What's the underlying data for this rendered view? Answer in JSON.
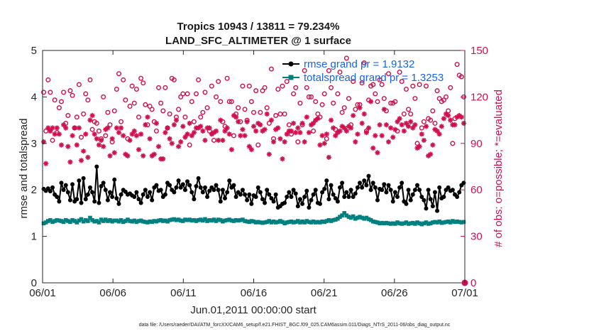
{
  "colors": {
    "rmse": "#000000",
    "spread": "#008080",
    "obs": "#d0104c",
    "legend_text": "#1764e8"
  },
  "chart_data": {
    "type": "line",
    "title": [
      "Tropics 10943 / 13811 = 79.234%",
      "LAND_SFC_ALTIMETER @ 1 surface"
    ],
    "xlabel": "Jun.01,2011 00:00:00 start",
    "ylabel": "rmse and totalspread",
    "y2label": "# of obs: o=possible; *=evaluated",
    "footnote": "data file: /Users/raeder/DAI/ATM_forcXX/CAM6_setup/f.e21.FHIST_BGC.f09_025.CAM6assim.011/Diags_NTrS_2011-06/obs_diag_output.nc",
    "xlim": [
      0,
      30
    ],
    "ylim": [
      0,
      5
    ],
    "y2lim": [
      0,
      150
    ],
    "xticks": [
      0,
      5,
      10,
      15,
      20,
      25,
      30
    ],
    "xtick_labels": [
      "06/01",
      "06/06",
      "06/11",
      "06/16",
      "06/21",
      "06/26",
      "07/01"
    ],
    "yticks": [
      0,
      1,
      2,
      3,
      4,
      5
    ],
    "ytick_labels": [
      "0",
      "1",
      "2",
      "3",
      "4",
      "5"
    ],
    "y2ticks": [
      0,
      30,
      60,
      90,
      120,
      150
    ],
    "y2tick_labels": [
      "0",
      "30",
      "60",
      "90",
      "120",
      "150"
    ],
    "legend": [
      "rmse grand pr = 1.9132",
      "totalspread grand pr = 1.3253"
    ],
    "legend_location": "top-right",
    "series": [
      {
        "name": "rmse",
        "marker": "dot",
        "values": [
          2.02,
          1.98,
          2.03,
          1.97,
          2.05,
          1.9,
          1.85,
          1.75,
          2.15,
          2.0,
          2.1,
          1.95,
          1.78,
          2.12,
          1.75,
          1.8,
          2.2,
          1.72,
          2.25,
          1.8,
          1.9,
          2.05,
          1.95,
          1.75,
          2.5,
          1.72,
          2.08,
          2.15,
          2.0,
          1.78,
          1.95,
          1.85,
          2.22,
          1.82,
          1.7,
          1.9,
          2.0,
          1.96,
          1.9,
          1.92,
          1.88,
          1.85,
          1.95,
          1.8,
          1.72,
          1.9,
          2.0,
          1.85,
          1.95,
          1.78,
          2.05,
          2.1,
          1.98,
          2.0,
          1.85,
          1.9,
          2.15,
          2.1,
          2.0,
          1.95,
          2.05,
          2.2,
          2.05,
          2.12,
          2.0,
          2.18,
          2.1,
          1.95,
          1.8,
          2.08,
          2.25,
          2.05,
          1.95,
          2.05,
          1.85,
          1.98,
          2.05,
          2.0,
          2.1,
          2.0,
          1.75,
          2.0,
          1.82,
          1.95,
          2.2,
          2.05,
          2.1,
          1.85,
          1.95,
          1.9,
          2.0,
          1.9,
          1.78,
          1.9,
          1.7,
          1.88,
          1.85,
          2.05,
          1.95,
          1.8,
          1.72,
          2.0,
          1.9,
          1.82,
          1.75,
          1.9,
          1.62,
          1.65,
          1.7,
          1.72,
          1.85,
          1.95,
          1.85,
          2.0,
          1.92,
          1.65,
          1.8,
          1.7,
          1.85,
          1.98,
          1.62,
          1.78,
          1.9,
          2.0,
          1.72,
          1.7,
          1.95,
          2.02,
          2.2,
          1.8,
          2.1,
          1.9,
          1.82,
          1.75,
          2.05,
          2.15,
          1.85,
          1.95,
          1.85,
          2.0,
          1.85,
          1.92,
          2.05,
          2.15,
          2.05,
          2.2,
          2.1,
          2.3,
          2.0,
          2.15,
          2.05,
          1.78,
          2.02,
          2.0,
          2.12,
          1.95,
          2.1,
          2.0,
          1.75,
          1.95,
          1.85,
          2.05,
          2.15,
          1.75,
          1.7,
          2.0,
          1.78,
          1.9,
          2.0,
          2.1,
          2.0,
          1.85,
          1.78,
          1.6,
          2.0,
          1.8,
          1.65,
          1.95,
          1.55,
          2.05,
          1.82,
          1.85,
          2.0,
          2.05,
          1.98,
          2.0,
          1.9,
          1.85,
          1.95,
          2.1,
          2.15
        ]
      },
      {
        "name": "totalspread",
        "marker": "square",
        "values": [
          1.28,
          1.3,
          1.33,
          1.35,
          1.31,
          1.33,
          1.35,
          1.34,
          1.33,
          1.31,
          1.35,
          1.33,
          1.31,
          1.35,
          1.33,
          1.3,
          1.34,
          1.37,
          1.32,
          1.35,
          1.33,
          1.4,
          1.35,
          1.32,
          1.33,
          1.3,
          1.36,
          1.33,
          1.36,
          1.33,
          1.35,
          1.32,
          1.34,
          1.34,
          1.32,
          1.35,
          1.31,
          1.33,
          1.36,
          1.33,
          1.32,
          1.34,
          1.31,
          1.33,
          1.34,
          1.32,
          1.31,
          1.3,
          1.32,
          1.31,
          1.33,
          1.32,
          1.34,
          1.35,
          1.33,
          1.34,
          1.32,
          1.35,
          1.36,
          1.37,
          1.35,
          1.36,
          1.34,
          1.33,
          1.36,
          1.35,
          1.36,
          1.34,
          1.35,
          1.33,
          1.35,
          1.36,
          1.34,
          1.37,
          1.33,
          1.35,
          1.34,
          1.36,
          1.33,
          1.36,
          1.35,
          1.32,
          1.34,
          1.35,
          1.36,
          1.34,
          1.33,
          1.35,
          1.34,
          1.35,
          1.36,
          1.33,
          1.32,
          1.31,
          1.33,
          1.32,
          1.3,
          1.31,
          1.3,
          1.29,
          1.3,
          1.31,
          1.33,
          1.3,
          1.32,
          1.3,
          1.31,
          1.33,
          1.31,
          1.28,
          1.3,
          1.31,
          1.32,
          1.3,
          1.31,
          1.33,
          1.3,
          1.32,
          1.3,
          1.33,
          1.31,
          1.3,
          1.32,
          1.3,
          1.31,
          1.3,
          1.32,
          1.31,
          1.33,
          1.35,
          1.33,
          1.35,
          1.36,
          1.38,
          1.42,
          1.45,
          1.5,
          1.45,
          1.42,
          1.4,
          1.43,
          1.38,
          1.4,
          1.42,
          1.4,
          1.38,
          1.4,
          1.37,
          1.35,
          1.32,
          1.31,
          1.3,
          1.28,
          1.29,
          1.28,
          1.29,
          1.28,
          1.27,
          1.28,
          1.27,
          1.3,
          1.28,
          1.27,
          1.28,
          1.3,
          1.27,
          1.28,
          1.29,
          1.27,
          1.3,
          1.28,
          1.26,
          1.28,
          1.3,
          1.27,
          1.28,
          1.3,
          1.31,
          1.3,
          1.32,
          1.29,
          1.3,
          1.31,
          1.32,
          1.3,
          1.33,
          1.31,
          1.32,
          1.31,
          1.3,
          1.31
        ]
      },
      {
        "name": "obs_possible",
        "marker": "circle",
        "axis": "right",
        "values": [
          123,
          98,
          131,
          123,
          92,
          118,
          97,
          113,
          117,
          123,
          103,
          108,
          124,
          121,
          100,
          107,
          128,
          94,
          109,
          122,
          118,
          131,
          99,
          104,
          103,
          98,
          93,
          120,
          95,
          110,
          102,
          91,
          111,
          125,
          135,
          104,
          131,
          118,
          93,
          114,
          127,
          116,
          125,
          107,
          132,
          129,
          115,
          102,
          114,
          112,
          104,
          98,
          126,
          116,
          111,
          126,
          100,
          109,
          132,
          131,
          107,
          112,
          120,
          122,
          107,
          122,
          89,
          117,
          104,
          122,
          131,
          107,
          110,
          123,
          113,
          98,
          127,
          92,
          120,
          130,
          117,
          104,
          101,
          132,
          117,
          117,
          95,
          109,
          113,
          104,
          127,
          112,
          105,
          127,
          117,
          110,
          124,
          89,
          110,
          124,
          126,
          113,
          103,
          138,
          93,
          108,
          125,
          109,
          127,
          109,
          130,
          102,
          96,
          122,
          126,
          91,
          116,
          102,
          137,
          126,
          120,
          120,
          98,
          117,
          109,
          107,
          115,
          122,
          93,
          137,
          126,
          116,
          99,
          122,
          136,
          110,
          113,
          145,
          119,
          102,
          130,
          112,
          115,
          115,
          129,
          142,
          98,
          118,
          127,
          128,
          122,
          117,
          131,
          128,
          119,
          111,
          135,
          116,
          116,
          117,
          98,
          136,
          130,
          109,
          125,
          112,
          109,
          127,
          119,
          90,
          128,
          100,
          104,
          127,
          106,
          105,
          111,
          103,
          124,
          119,
          117,
          118,
          120,
          111,
          126,
          90,
          106,
          141,
          134,
          133,
          120
        ]
      },
      {
        "name": "obs_evaluated",
        "marker": "star",
        "axis": "right",
        "values": [
          91,
          77,
          100,
          98,
          100,
          96,
          100,
          96,
          89,
          102,
          100,
          88,
          78,
          95,
          100,
          89,
          100,
          79,
          85,
          96,
          81,
          105,
          108,
          96,
          93,
          89,
          92,
          88,
          99,
          100,
          82,
          93,
          84,
          100,
          97,
          100,
          95,
          83,
          82,
          92,
          96,
          98,
          95,
          86,
          96,
          82,
          102,
          107,
          93,
          82,
          83,
          103,
          88,
          80,
          80,
          97,
          100,
          93,
          90,
          102,
          105,
          88,
          91,
          101,
          94,
          96,
          103,
          95,
          97,
          100,
          100,
          101,
          98,
          92,
          100,
          100,
          96,
          97,
          98,
          92,
          105,
          92,
          98,
          100,
          96,
          86,
          108,
          107,
          104,
          95,
          99,
          95,
          104,
          88,
          86,
          101,
          98,
          103,
          102,
          98,
          99,
          109,
          83,
          105,
          91,
          99,
          100,
          93,
          80,
          91,
          96,
          98,
          98,
          103,
          97,
          100,
          97,
          103,
          91,
          107,
          97,
          102,
          103,
          105,
          106,
          89,
          95,
          90,
          96,
          81,
          105,
          100,
          95,
          97,
          98,
          101,
          100,
          98,
          101,
          100,
          108,
          91,
          96,
          113,
          103,
          109,
          97,
          100,
          117,
          87,
          95,
          84,
          102,
          95,
          112,
          102,
          91,
          100,
          94,
          99,
          104,
          106,
          102,
          98,
          103,
          101,
          104,
          100,
          102,
          87,
          88,
          96,
          92,
          101,
          82,
          83,
          89,
          99,
          98,
          96,
          101,
          106,
          109,
          108,
          105,
          102,
          102,
          107,
          108,
          107,
          103
        ]
      }
    ]
  }
}
